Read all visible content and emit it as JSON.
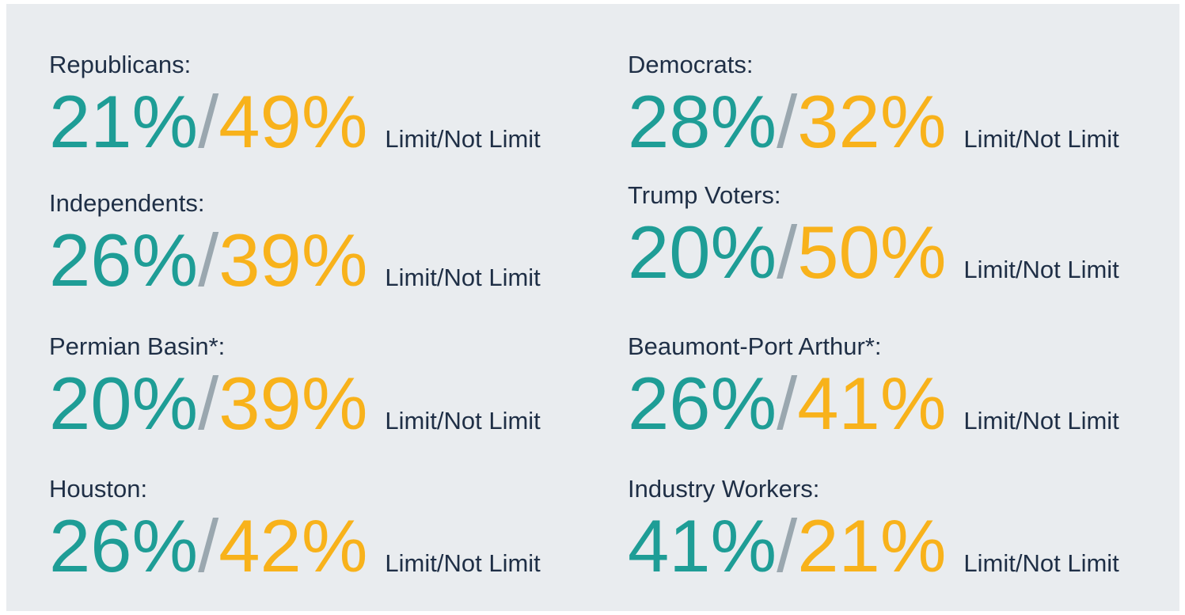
{
  "items": [
    {
      "label": "Republicans:",
      "limit": "21%",
      "separator": "/",
      "not_limit": "49%",
      "legend": "Limit/Not Limit"
    },
    {
      "label": "Democrats:",
      "limit": "28%",
      "separator": "/",
      "not_limit": "32%",
      "legend": "Limit/Not Limit"
    },
    {
      "label": "Independents:",
      "limit": "26%",
      "separator": "/",
      "not_limit": "39%",
      "legend": "Limit/Not Limit"
    },
    {
      "label": "Trump Voters:",
      "limit": "20%",
      "separator": "/",
      "not_limit": "50%",
      "legend": "Limit/Not Limit"
    },
    {
      "label": "Permian Basin*:",
      "limit": "20%",
      "separator": "/",
      "not_limit": "39%",
      "legend": "Limit/Not Limit"
    },
    {
      "label": "Beaumont-Port Arthur*:",
      "limit": "26%",
      "separator": "/",
      "not_limit": "41%",
      "legend": "Limit/Not Limit"
    },
    {
      "label": "Houston:",
      "limit": "26%",
      "separator": "/",
      "not_limit": "42%",
      "legend": "Limit/Not Limit"
    },
    {
      "label": "Industry Workers:",
      "limit": "41%",
      "separator": "/",
      "not_limit": "21%",
      "legend": "Limit/Not Limit"
    }
  ]
}
